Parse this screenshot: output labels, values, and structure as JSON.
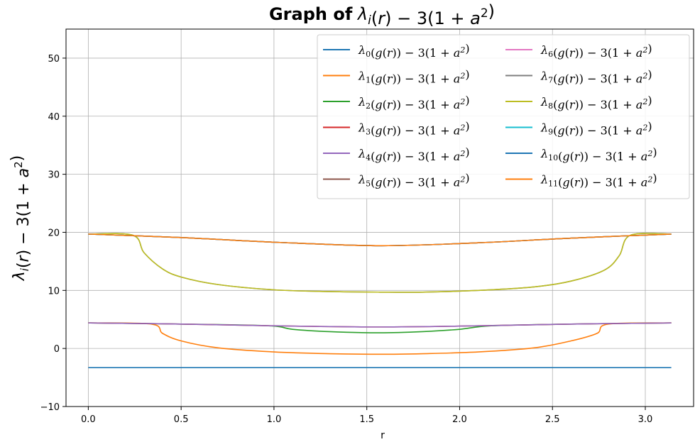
{
  "chart_data": {
    "type": "line",
    "title": {
      "prefix": "Graph of",
      "math": "λ_i(r) − 3(1 + a²)"
    },
    "xlabel": "r",
    "ylabel": "λ_i(r) − 3(1 + a²)",
    "xlim": [
      -0.12,
      3.26
    ],
    "ylim": [
      -10,
      55
    ],
    "xticks": [
      "0.0",
      "0.5",
      "1.0",
      "1.5",
      "2.0",
      "2.5",
      "3.0"
    ],
    "yticks": [
      "−10",
      "0",
      "10",
      "20",
      "30",
      "40",
      "50"
    ],
    "xtick_values": [
      0,
      0.5,
      1,
      1.5,
      2,
      2.5,
      3
    ],
    "ytick_values": [
      -10,
      0,
      10,
      20,
      30,
      40,
      50
    ],
    "grid": true,
    "legend_position": "top-right",
    "legend_columns": 2,
    "series": [
      {
        "name": "λ0(g(r)) − 3(1 + a²)",
        "color": "#1f77b4",
        "x": [
          0,
          3.14
        ],
        "y": [
          -3.3,
          -3.3
        ]
      },
      {
        "name": "λ1(g(r)) − 3(1 + a²)",
        "color": "#ff7f0e",
        "x": [
          0,
          0.34,
          0.4,
          0.5,
          0.7,
          1.0,
          1.3,
          1.57,
          1.8,
          2.1,
          2.4,
          2.6,
          2.74,
          2.8,
          3.14
        ],
        "y": [
          4.4,
          4.2,
          2.6,
          1.3,
          0.1,
          -0.6,
          -0.9,
          -1.0,
          -0.9,
          -0.6,
          0.1,
          1.3,
          2.6,
          4.2,
          4.4
        ]
      },
      {
        "name": "λ2(g(r)) − 3(1 + a²)",
        "color": "#2ca02c",
        "x": [
          0,
          0.5,
          0.97,
          1.1,
          1.3,
          1.57,
          1.8,
          2.0,
          2.17,
          2.6,
          3.14
        ],
        "y": [
          4.4,
          4.2,
          3.9,
          3.3,
          2.9,
          2.7,
          2.9,
          3.3,
          3.9,
          4.2,
          4.4
        ]
      },
      {
        "name": "λ3(g(r)) − 3(1 + a²)",
        "color": "#d62728",
        "x": [
          0,
          0.5,
          1.0,
          1.57,
          2.1,
          2.6,
          3.14
        ],
        "y": [
          4.4,
          4.2,
          3.9,
          3.7,
          3.9,
          4.2,
          4.4
        ]
      },
      {
        "name": "λ4(g(r)) − 3(1 + a²)",
        "color": "#9467bd",
        "x": [
          0,
          0.5,
          1.0,
          1.57,
          2.1,
          2.6,
          3.14
        ],
        "y": [
          4.4,
          4.2,
          3.9,
          3.7,
          3.9,
          4.2,
          4.4
        ]
      },
      {
        "name": "λ5(g(r)) − 3(1 + a²)",
        "color": "#8c564b",
        "x": [
          0,
          0.5,
          1.0,
          1.57,
          2.1,
          2.6,
          3.14
        ],
        "y": [
          19.7,
          19.1,
          18.3,
          17.7,
          18.2,
          19.0,
          19.7
        ]
      },
      {
        "name": "λ6(g(r)) − 3(1 + a²)",
        "color": "#e377c2",
        "x": [
          0,
          0.5,
          1.0,
          1.57,
          2.1,
          2.6,
          3.14
        ],
        "y": [
          19.7,
          19.1,
          18.3,
          17.7,
          18.2,
          19.0,
          19.7
        ]
      },
      {
        "name": "λ7(g(r)) − 3(1 + a²)",
        "color": "#7f7f7f",
        "x": [
          0,
          0.24,
          0.3,
          0.4,
          0.5,
          0.7,
          1.0,
          1.3,
          1.57,
          1.8,
          2.1,
          2.4,
          2.6,
          2.78,
          2.86,
          2.92,
          3.14
        ],
        "y": [
          19.7,
          19.5,
          16.5,
          13.7,
          12.3,
          11.0,
          10.1,
          9.8,
          9.7,
          9.7,
          10.0,
          10.6,
          11.6,
          13.5,
          16.0,
          19.5,
          19.7
        ]
      },
      {
        "name": "λ8(g(r)) − 3(1 + a²)",
        "color": "#bcbd22",
        "x": [
          0,
          0.24,
          0.3,
          0.4,
          0.5,
          0.7,
          1.0,
          1.3,
          1.57,
          1.8,
          2.1,
          2.4,
          2.6,
          2.78,
          2.86,
          2.92,
          3.14
        ],
        "y": [
          19.7,
          19.5,
          16.5,
          13.7,
          12.3,
          11.0,
          10.1,
          9.8,
          9.7,
          9.7,
          10.0,
          10.6,
          11.6,
          13.5,
          16.0,
          19.5,
          19.7
        ]
      },
      {
        "name": "λ9(g(r)) − 3(1 + a²)",
        "color": "#17becf",
        "x": [
          0,
          0.5,
          1.0,
          1.57,
          2.1,
          2.6,
          3.14
        ],
        "y": [
          19.7,
          19.1,
          18.3,
          17.7,
          18.2,
          19.0,
          19.7
        ]
      },
      {
        "name": "λ10(g(r)) − 3(1 + a²)",
        "color": "#1f77b4",
        "x": [
          0,
          0.5,
          1.0,
          1.57,
          2.1,
          2.6,
          3.14
        ],
        "y": [
          19.7,
          19.1,
          18.3,
          17.7,
          18.2,
          19.0,
          19.7
        ]
      },
      {
        "name": "λ11(g(r)) − 3(1 + a²)",
        "color": "#ff7f0e",
        "x": [
          0,
          0.5,
          1.0,
          1.57,
          2.1,
          2.6,
          3.14
        ],
        "y": [
          19.7,
          19.1,
          18.3,
          17.7,
          18.2,
          19.0,
          19.7
        ]
      }
    ]
  }
}
